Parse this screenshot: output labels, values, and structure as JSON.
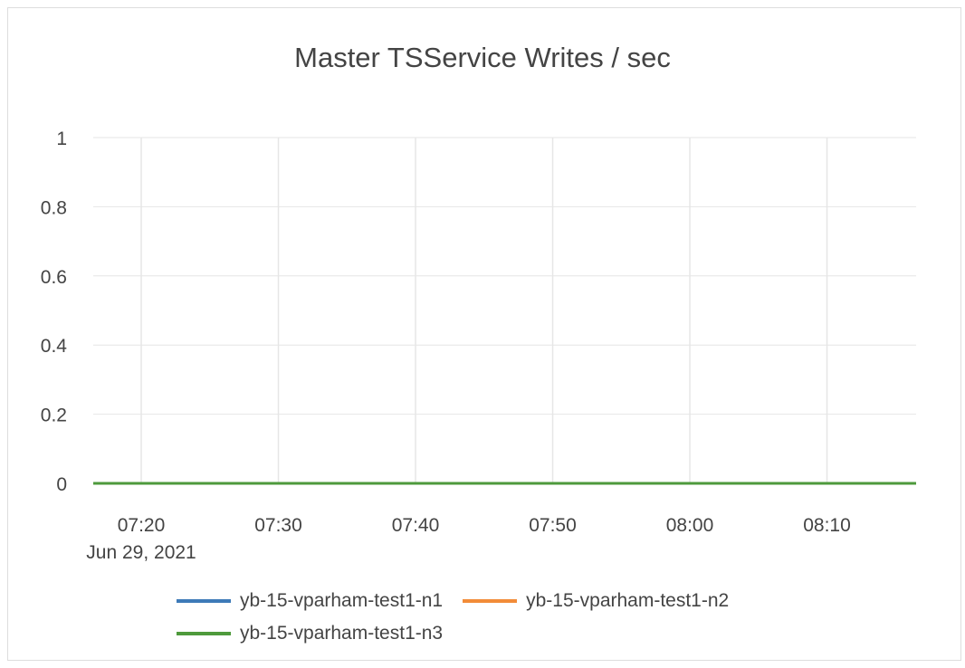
{
  "chart_data": {
    "type": "line",
    "title": "Master TSService Writes / sec",
    "xlabel": "",
    "ylabel": "",
    "x_ticks": [
      "07:20",
      "07:30",
      "07:40",
      "07:50",
      "08:00",
      "08:10"
    ],
    "x_tick_sublabel": "Jun 29, 2021",
    "x_range": [
      "07:16:30",
      "08:16:30"
    ],
    "y_ticks": [
      "0",
      "0.2",
      "0.4",
      "0.6",
      "0.8",
      "1"
    ],
    "ylim": [
      0,
      1
    ],
    "grid": true,
    "legend_position": "bottom",
    "x": [
      "07:16:30",
      "08:16:30"
    ],
    "series": [
      {
        "name": "yb-15-vparham-test1-n1",
        "color": "#3d7ab8",
        "values": [
          0,
          0
        ]
      },
      {
        "name": "yb-15-vparham-test1-n2",
        "color": "#f28c38",
        "values": [
          0,
          0
        ]
      },
      {
        "name": "yb-15-vparham-test1-n3",
        "color": "#4e9a3c",
        "values": [
          0,
          0
        ]
      }
    ]
  }
}
